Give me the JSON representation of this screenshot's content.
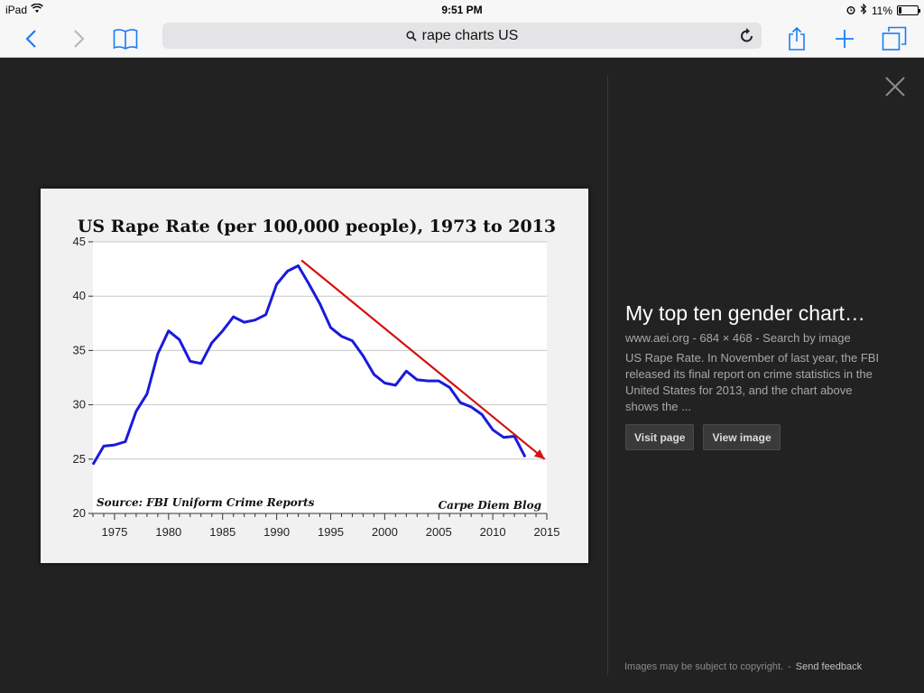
{
  "status": {
    "device": "iPad",
    "time": "9:51 PM",
    "battery": "11%",
    "icons": [
      "wifi-icon",
      "alarm-icon",
      "bluetooth-icon",
      "battery-icon"
    ]
  },
  "browser": {
    "url_text": "rape charts US",
    "icons": [
      "back-icon",
      "forward-icon",
      "bookmarks-icon",
      "search-icon",
      "reload-icon",
      "share-icon",
      "new-tab-icon",
      "tabs-icon"
    ]
  },
  "viewer": {
    "close_icon": "close-icon"
  },
  "chart_data": {
    "type": "line",
    "title": "US Rape Rate (per 100,000 people), 1973 to 2013",
    "source": "Source: FBI Uniform Crime Reports",
    "credit": "Carpe Diem Blog",
    "xlim": [
      1973,
      2015
    ],
    "ylim": [
      20,
      45
    ],
    "xticks": [
      "1975",
      "1980",
      "1985",
      "1990",
      "1995",
      "2000",
      "2005",
      "2010",
      "2015"
    ],
    "yticks": [
      "45",
      "40",
      "35",
      "30",
      "25",
      "20"
    ],
    "grid": true,
    "series": [
      {
        "color": "#1a1adb",
        "x": [
          1973,
          1974,
          1975,
          1976,
          1977,
          1978,
          1979,
          1980,
          1981,
          1982,
          1983,
          1984,
          1985,
          1986,
          1987,
          1988,
          1989,
          1990,
          1991,
          1992,
          1993,
          1994,
          1995,
          1996,
          1997,
          1998,
          1999,
          2000,
          2001,
          2002,
          2003,
          2004,
          2005,
          2006,
          2007,
          2008,
          2009,
          2010,
          2011,
          2012,
          2013
        ],
        "y": [
          24.5,
          26.2,
          26.3,
          26.6,
          29.4,
          31.0,
          34.7,
          36.8,
          36.0,
          34.0,
          33.8,
          35.7,
          36.8,
          38.1,
          37.6,
          37.8,
          38.3,
          41.1,
          42.3,
          42.8,
          41.1,
          39.3,
          37.1,
          36.3,
          35.9,
          34.5,
          32.8,
          32.0,
          31.8,
          33.1,
          32.3,
          32.2,
          32.2,
          31.6,
          30.2,
          29.8,
          29.1,
          27.7,
          27.0,
          27.1,
          25.2
        ]
      }
    ],
    "annotation": {
      "type": "arrow",
      "color": "#d41010",
      "from": [
        1992.3,
        43.3
      ],
      "to": [
        2014.8,
        25.0
      ]
    }
  },
  "result": {
    "title": "My top ten gender chart…",
    "source": "www.aei.org",
    "size": "684 × 468",
    "search_by_image": "Search by image",
    "description": "US Rape Rate. In November of last year, the FBI released its final report on crime statistics in the United States for 2013, and the chart above shows the ...",
    "visit_page": "Visit page",
    "view_image": "View image"
  },
  "footer": {
    "copyright": "Images may be subject to copyright.",
    "separator": "-",
    "feedback": "Send feedback"
  }
}
